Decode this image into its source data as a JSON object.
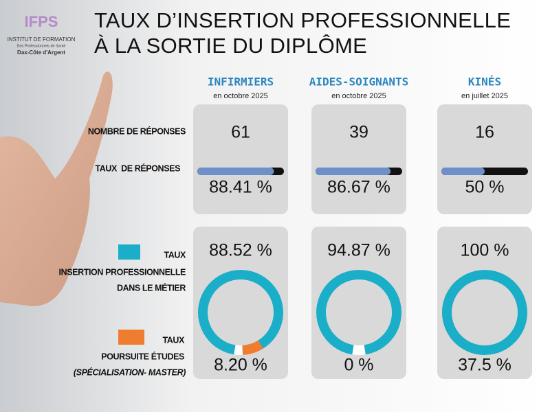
{
  "header": {
    "logo": {
      "name": "IFPS",
      "line1": "INSTITUT DE FORMATION",
      "line2": "Des Professionnels de Santé",
      "line3": "Dax-Côte d'Argent"
    },
    "title_line1": "TAUX D’INSERTION PROFESSIONNELLE",
    "title_line2": "À LA SORTIE DU DIPLÔME"
  },
  "row_labels": {
    "responses": "NOMBRE DE RÉPONSES",
    "rate": "TAUX  DE RÉPONSES",
    "insertion": [
      "TAUX",
      "INSERTION PROFESSIONNELLE",
      "DANS LE MÉTIER"
    ],
    "further": [
      "TAUX",
      "POURSUITE ÉTUDES",
      "(SPÉCIALISATION- MASTER)"
    ]
  },
  "colors": {
    "insertion": "#1aaec8",
    "further": "#ef7d31",
    "rate": "#6f8fc7",
    "rate_track": "#111111"
  },
  "columns": [
    {
      "name": "INFIRMIERS",
      "date": "en octobre 2025",
      "responses": 61,
      "response_rate": 88.41,
      "response_rate_label": "88.41 %",
      "insertion_rate": 88.52,
      "insertion_rate_label": "88.52 %",
      "further_study_rate": 8.2,
      "further_study_rate_label": "8.20 %"
    },
    {
      "name": "AIDES-SOIGNANTS",
      "date": "en octobre 2025",
      "responses": 39,
      "response_rate": 86.67,
      "response_rate_label": "86.67 %",
      "insertion_rate": 94.87,
      "insertion_rate_label": "94.87 %",
      "further_study_rate": 0,
      "further_study_rate_label": "0 %"
    },
    {
      "name": "KINÉS",
      "date": "en juillet 2025",
      "responses": 16,
      "response_rate": 50,
      "response_rate_label": "50 %",
      "insertion_rate": 100,
      "insertion_rate_label": "100  %",
      "further_study_rate": 37.5,
      "further_study_rate_label": "37.5 %"
    }
  ]
}
